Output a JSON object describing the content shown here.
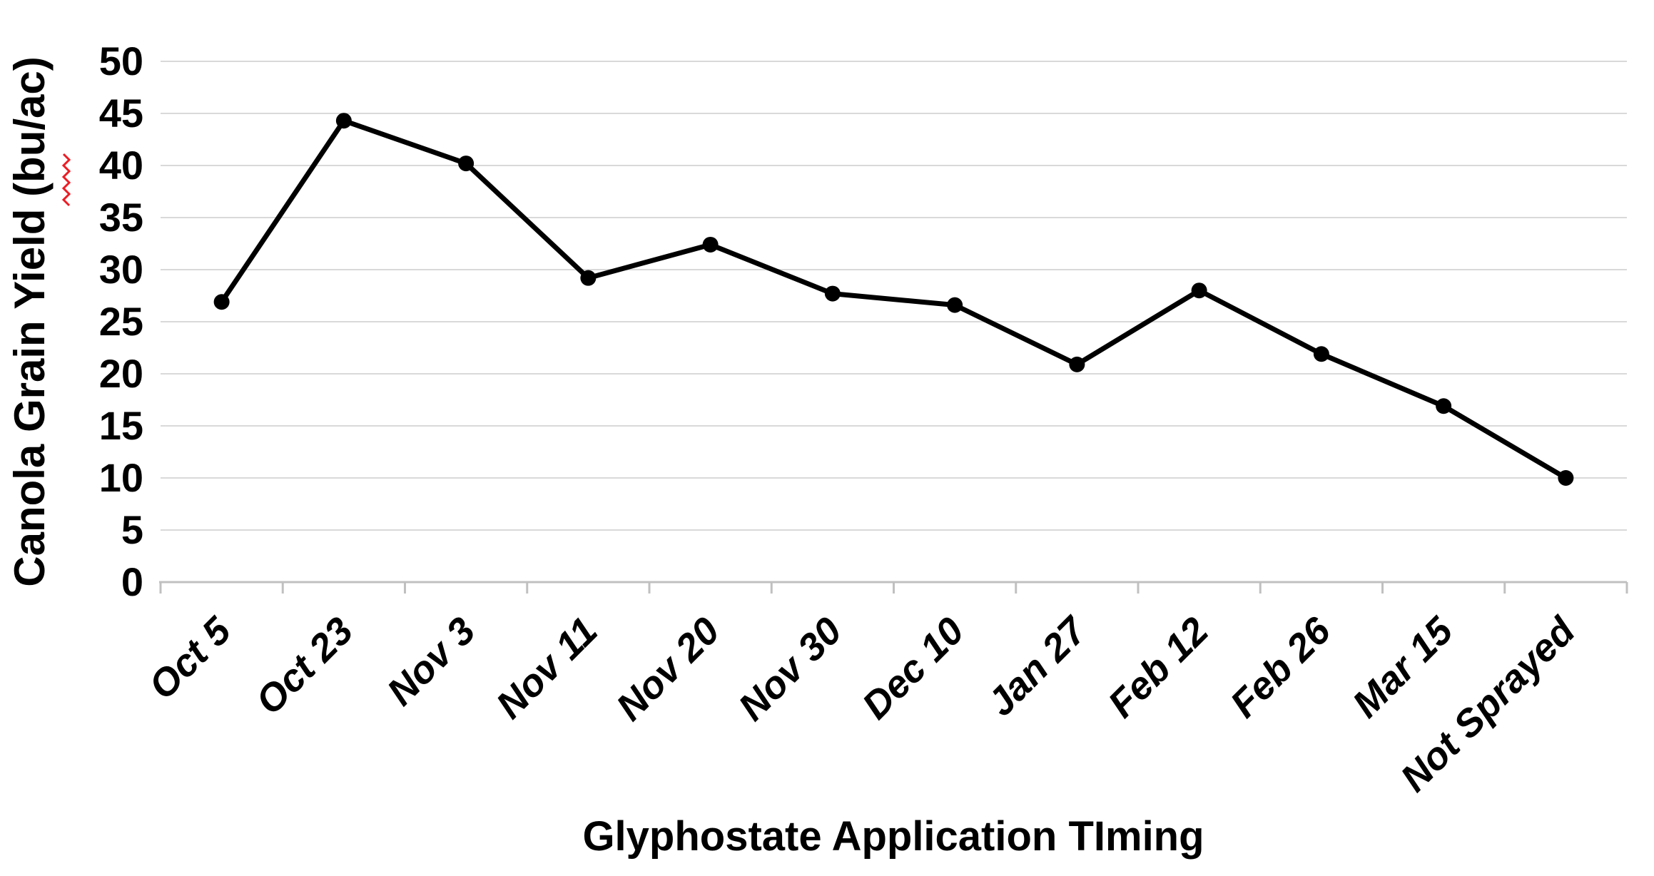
{
  "chart_data": {
    "type": "line",
    "title": "",
    "xlabel": "Glyphostate Application TIming",
    "ylabel": "Canola Grain Yield (bu/ac)",
    "categories": [
      "Oct 5",
      "Oct 23",
      "Nov 3",
      "Nov 11",
      "Nov 20",
      "Nov 30",
      "Dec 10",
      "Jan 27",
      "Feb 12",
      "Feb 26",
      "Mar 15",
      "Not Sprayed"
    ],
    "series": [
      {
        "name": "Canola Grain Yield",
        "values": [
          26.9,
          44.3,
          40.2,
          29.2,
          32.4,
          27.7,
          26.6,
          20.9,
          28.0,
          21.9,
          16.9,
          10.0
        ]
      }
    ],
    "ylim": [
      0,
      50
    ],
    "yticks": [
      0,
      5,
      10,
      15,
      20,
      25,
      30,
      35,
      40,
      45,
      50
    ],
    "grid": "horizontal",
    "legend": "none",
    "line_color": "#000000",
    "marker": "circle",
    "marker_color": "#000000",
    "gridline_color": "#d9d9d9",
    "axis_line_color": "#c0c0c0",
    "label_color": "#000000",
    "background_color": "#ffffff",
    "spellcheck_squiggle": {
      "word": "bu",
      "color": "#ed1c24"
    }
  }
}
